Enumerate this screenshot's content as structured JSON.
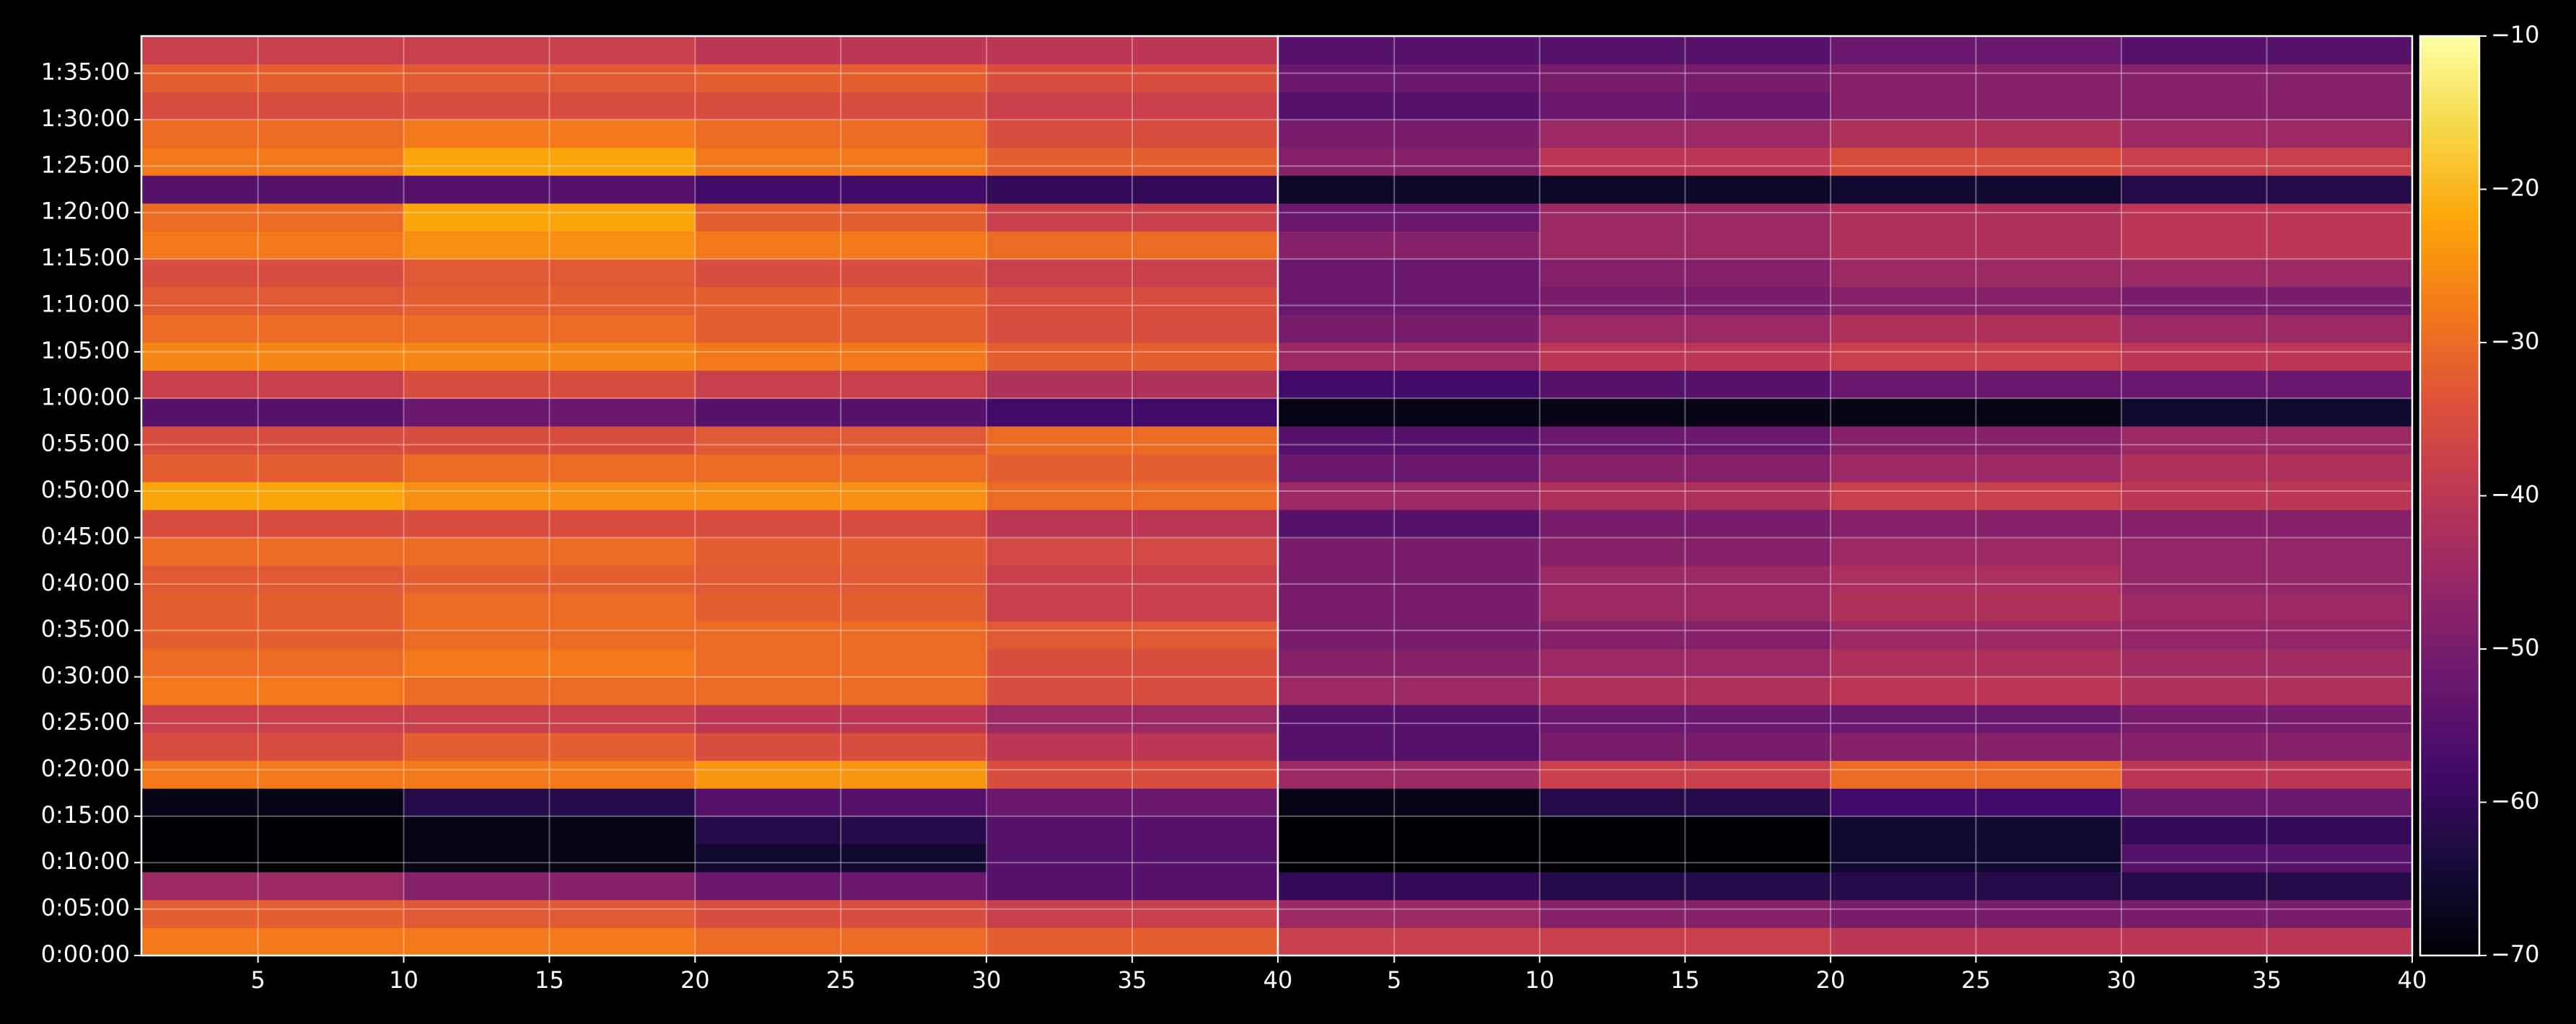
{
  "chart_data": {
    "type": "heatmap",
    "colormap": "inferno",
    "grid": true,
    "ylim": [
      0,
      5940
    ],
    "yticks": [
      {
        "value": 0,
        "label": "0:00:00"
      },
      {
        "value": 300,
        "label": "0:05:00"
      },
      {
        "value": 600,
        "label": "0:10:00"
      },
      {
        "value": 900,
        "label": "0:15:00"
      },
      {
        "value": 1200,
        "label": "0:20:00"
      },
      {
        "value": 1500,
        "label": "0:25:00"
      },
      {
        "value": 1800,
        "label": "0:30:00"
      },
      {
        "value": 2100,
        "label": "0:35:00"
      },
      {
        "value": 2400,
        "label": "0:40:00"
      },
      {
        "value": 2700,
        "label": "0:45:00"
      },
      {
        "value": 3000,
        "label": "0:50:00"
      },
      {
        "value": 3300,
        "label": "0:55:00"
      },
      {
        "value": 3600,
        "label": "1:00:00"
      },
      {
        "value": 3900,
        "label": "1:05:00"
      },
      {
        "value": 4200,
        "label": "1:10:00"
      },
      {
        "value": 4500,
        "label": "1:15:00"
      },
      {
        "value": 4800,
        "label": "1:20:00"
      },
      {
        "value": 5100,
        "label": "1:25:00"
      },
      {
        "value": 5400,
        "label": "1:30:00"
      },
      {
        "value": 5700,
        "label": "1:35:00"
      }
    ],
    "y_bins": [
      0,
      180,
      360,
      540,
      720,
      900,
      1080,
      1260,
      1440,
      1620,
      1800,
      1980,
      2160,
      2340,
      2520,
      2700,
      2880,
      3060,
      3240,
      3420,
      3600,
      3780,
      3960,
      4140,
      4320,
      4500,
      4680,
      4860,
      5040,
      5220,
      5400,
      5580,
      5760,
      5940
    ],
    "clim": [
      -70,
      -10
    ],
    "cticks": [
      {
        "value": -70,
        "label": "−70"
      },
      {
        "value": -60,
        "label": "−60"
      },
      {
        "value": -50,
        "label": "−50"
      },
      {
        "value": -40,
        "label": "−40"
      },
      {
        "value": -30,
        "label": "−30"
      },
      {
        "value": -20,
        "label": "−20"
      },
      {
        "value": -10,
        "label": "−10"
      }
    ],
    "panels": [
      {
        "xlim": [
          1,
          40
        ],
        "xticks": [
          5,
          10,
          15,
          20,
          25,
          30,
          35,
          40
        ],
        "x_bins": [
          1,
          10,
          20,
          30,
          40
        ],
        "values": [
          [
            -28,
            -28,
            -30,
            -32
          ],
          [
            -32,
            -33,
            -35,
            -38
          ],
          [
            -45,
            -48,
            -52,
            -55
          ],
          [
            -70,
            -68,
            -65,
            -55
          ],
          [
            -70,
            -68,
            -62,
            -55
          ],
          [
            -68,
            -62,
            -55,
            -52
          ],
          [
            -28,
            -28,
            -24,
            -35
          ],
          [
            -35,
            -32,
            -35,
            -40
          ],
          [
            -38,
            -38,
            -40,
            -45
          ],
          [
            -28,
            -30,
            -30,
            -35
          ],
          [
            -30,
            -28,
            -30,
            -35
          ],
          [
            -32,
            -30,
            -30,
            -33
          ],
          [
            -32,
            -30,
            -32,
            -38
          ],
          [
            -33,
            -32,
            -33,
            -38
          ],
          [
            -30,
            -30,
            -32,
            -36
          ],
          [
            -35,
            -35,
            -35,
            -40
          ],
          [
            -22,
            -25,
            -25,
            -30
          ],
          [
            -32,
            -30,
            -30,
            -32
          ],
          [
            -35,
            -35,
            -33,
            -30
          ],
          [
            -55,
            -52,
            -55,
            -58
          ],
          [
            -38,
            -35,
            -38,
            -42
          ],
          [
            -26,
            -26,
            -28,
            -32
          ],
          [
            -30,
            -30,
            -32,
            -35
          ],
          [
            -33,
            -32,
            -32,
            -35
          ],
          [
            -35,
            -33,
            -35,
            -38
          ],
          [
            -28,
            -25,
            -28,
            -30
          ],
          [
            -30,
            -22,
            -32,
            -38
          ],
          [
            -55,
            -55,
            -58,
            -60
          ],
          [
            -28,
            -22,
            -28,
            -32
          ],
          [
            -30,
            -28,
            -30,
            -35
          ],
          [
            -35,
            -35,
            -35,
            -38
          ],
          [
            -32,
            -33,
            -32,
            -35
          ],
          [
            -38,
            -38,
            -40,
            -40
          ]
        ]
      },
      {
        "xlim": [
          1,
          40
        ],
        "xticks": [
          5,
          10,
          15,
          20,
          25,
          30,
          35,
          40
        ],
        "x_bins": [
          1,
          10,
          20,
          30,
          40
        ],
        "values": [
          [
            -38,
            -38,
            -40,
            -40
          ],
          [
            -45,
            -48,
            -50,
            -50
          ],
          [
            -60,
            -62,
            -62,
            -62
          ],
          [
            -70,
            -70,
            -65,
            -55
          ],
          [
            -70,
            -70,
            -65,
            -60
          ],
          [
            -68,
            -62,
            -58,
            -52
          ],
          [
            -45,
            -38,
            -30,
            -40
          ],
          [
            -55,
            -50,
            -48,
            -48
          ],
          [
            -55,
            -52,
            -52,
            -50
          ],
          [
            -45,
            -42,
            -40,
            -42
          ],
          [
            -48,
            -45,
            -42,
            -44
          ],
          [
            -50,
            -48,
            -45,
            -46
          ],
          [
            -50,
            -45,
            -42,
            -45
          ],
          [
            -50,
            -45,
            -43,
            -46
          ],
          [
            -50,
            -48,
            -45,
            -46
          ],
          [
            -55,
            -50,
            -48,
            -48
          ],
          [
            -45,
            -42,
            -38,
            -40
          ],
          [
            -52,
            -48,
            -45,
            -42
          ],
          [
            -55,
            -52,
            -48,
            -45
          ],
          [
            -68,
            -68,
            -68,
            -65
          ],
          [
            -58,
            -55,
            -52,
            -52
          ],
          [
            -45,
            -40,
            -38,
            -40
          ],
          [
            -50,
            -45,
            -42,
            -45
          ],
          [
            -52,
            -50,
            -48,
            -50
          ],
          [
            -52,
            -48,
            -45,
            -45
          ],
          [
            -48,
            -45,
            -42,
            -40
          ],
          [
            -52,
            -45,
            -42,
            -40
          ],
          [
            -66,
            -66,
            -65,
            -62
          ],
          [
            -48,
            -40,
            -35,
            -38
          ],
          [
            -50,
            -45,
            -42,
            -45
          ],
          [
            -55,
            -52,
            -48,
            -48
          ],
          [
            -52,
            -50,
            -48,
            -48
          ],
          [
            -55,
            -55,
            -52,
            -55
          ]
        ]
      }
    ]
  }
}
